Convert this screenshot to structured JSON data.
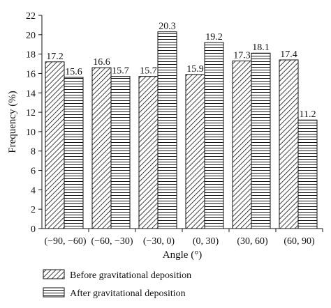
{
  "chart_data": {
    "type": "bar",
    "title": "",
    "xlabel": "Angle (°)",
    "ylabel": "Frequency (%)",
    "ylim": [
      0,
      22
    ],
    "yticks": [
      0,
      2,
      4,
      6,
      8,
      10,
      12,
      14,
      16,
      18,
      20,
      22
    ],
    "categories": [
      "(−90, −60)",
      "(−60, −30)",
      "(−30, 0)",
      "(0, 30)",
      "(30, 60)",
      "(60, 90)"
    ],
    "series": [
      {
        "name": "Before gravitational deposition",
        "values": [
          17.2,
          16.6,
          15.7,
          15.9,
          17.3,
          17.4
        ],
        "value_labels": [
          "17.2",
          "16.6",
          "15.7",
          "15.9",
          "17.3",
          "17.4"
        ],
        "pattern": "diagonal-hatch"
      },
      {
        "name": "After gravitational deposition",
        "values": [
          15.6,
          15.7,
          20.3,
          19.2,
          18.1,
          11.2
        ],
        "value_labels": [
          "15.6",
          "15.7",
          "20.3",
          "19.2",
          "18.1",
          "11.2"
        ],
        "pattern": "horizontal-lines"
      }
    ],
    "legend_position": "bottom",
    "grid": false,
    "colors": {
      "stroke": "#111111",
      "background": "#ffffff"
    }
  }
}
